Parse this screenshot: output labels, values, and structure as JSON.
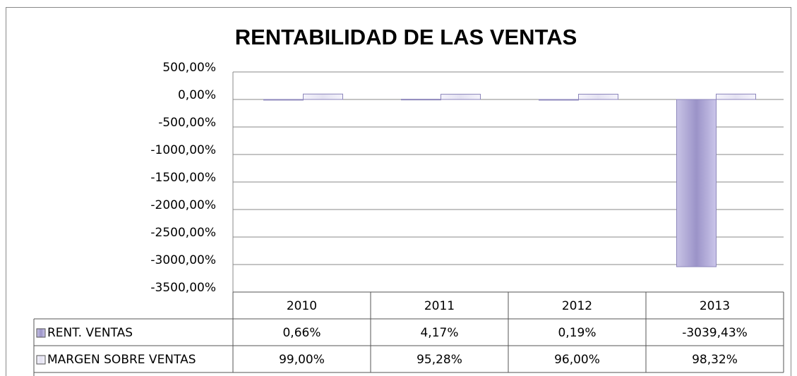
{
  "chart_data": {
    "type": "bar",
    "title": "RENTABILIDAD DE LAS VENTAS",
    "categories": [
      "2010",
      "2011",
      "2012",
      "2013"
    ],
    "series": [
      {
        "name": "RENT. VENTAS",
        "color": "#9b93c8",
        "values": [
          0.66,
          4.17,
          0.19,
          -3039.43
        ],
        "value_labels": [
          "0,66%",
          "4,17%",
          "0,19%",
          "-3039,43%"
        ]
      },
      {
        "name": "MARGEN SOBRE VENTAS",
        "color": "#e4e2f2",
        "values": [
          99.0,
          95.28,
          96.0,
          98.32
        ],
        "value_labels": [
          "99,00%",
          "95,28%",
          "96,00%",
          "98,32%"
        ]
      }
    ],
    "ylim": [
      -3500,
      500
    ],
    "yticks": [
      {
        "value": 500,
        "label": "500,00%"
      },
      {
        "value": 0,
        "label": "0,00%"
      },
      {
        "value": -500,
        "label": "-500,00%"
      },
      {
        "value": -1000,
        "label": "-1000,00%"
      },
      {
        "value": -1500,
        "label": "-1500,00%"
      },
      {
        "value": -2000,
        "label": "-2000,00%"
      },
      {
        "value": -2500,
        "label": "-2500,00%"
      },
      {
        "value": -3000,
        "label": "-3000,00%"
      },
      {
        "value": -3500,
        "label": "-3500,00%"
      }
    ],
    "grid": true
  }
}
